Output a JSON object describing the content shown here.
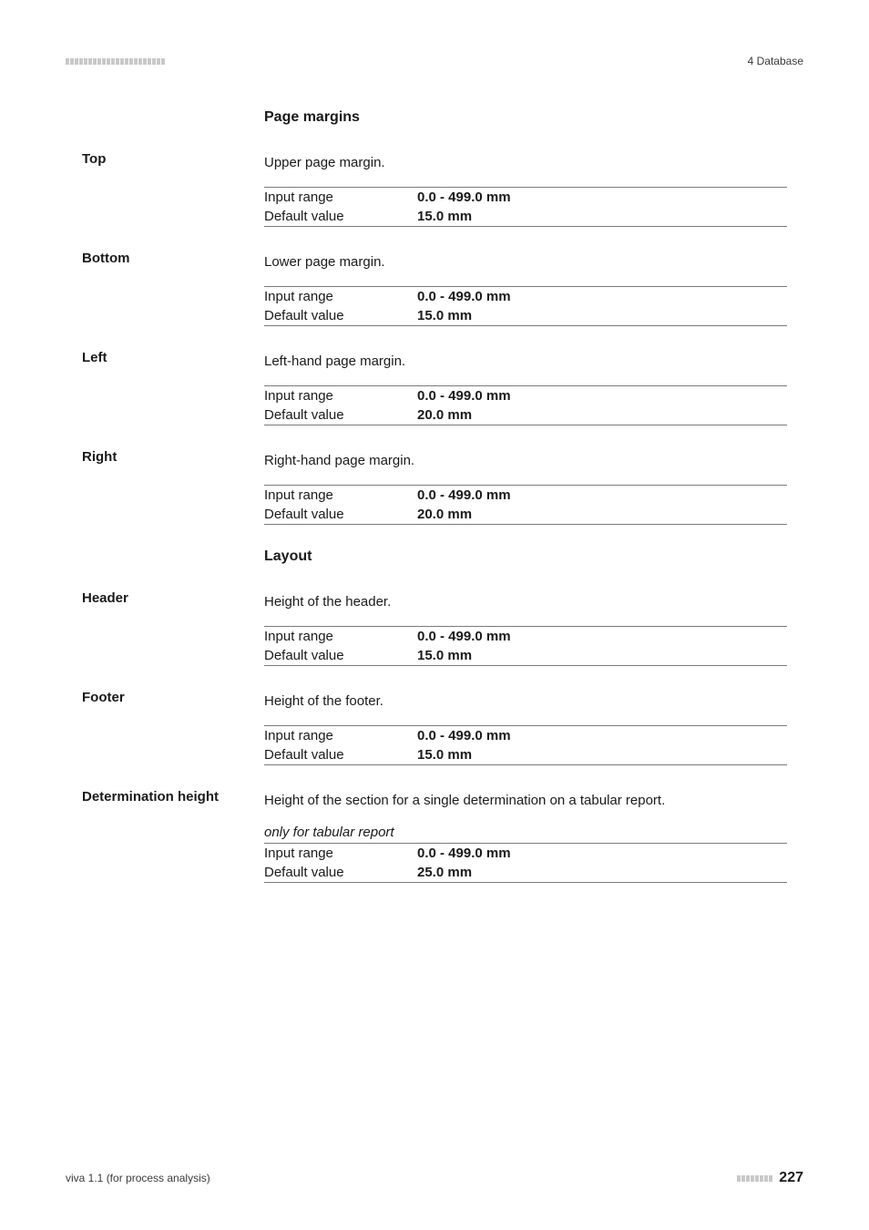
{
  "header": {
    "right_text": "4 Database"
  },
  "sections": [
    {
      "heading": "Page margins",
      "fields": [
        {
          "label": "Top",
          "desc": "Upper page margin.",
          "note": null,
          "range": "0.0 - 499.0 mm",
          "default": "15.0 mm"
        },
        {
          "label": "Bottom",
          "desc": "Lower page margin.",
          "note": null,
          "range": "0.0 - 499.0 mm",
          "default": "15.0 mm"
        },
        {
          "label": "Left",
          "desc": "Left-hand page margin.",
          "note": null,
          "range": "0.0 - 499.0 mm",
          "default": "20.0 mm"
        },
        {
          "label": "Right",
          "desc": "Right-hand page margin.",
          "note": null,
          "range": "0.0 - 499.0 mm",
          "default": "20.0 mm"
        }
      ]
    },
    {
      "heading": "Layout",
      "fields": [
        {
          "label": "Header",
          "desc": "Height of the header.",
          "note": null,
          "range": "0.0 - 499.0 mm",
          "default": "15.0 mm"
        },
        {
          "label": "Footer",
          "desc": "Height of the footer.",
          "note": null,
          "range": "0.0 - 499.0 mm",
          "default": "15.0 mm"
        },
        {
          "label": "Determination height",
          "desc": "Height of the section for a single determination on a tabular report.",
          "note": "only for tabular report",
          "range": "0.0 - 499.0 mm",
          "default": "25.0 mm"
        }
      ]
    }
  ],
  "labels": {
    "input_range": "Input range",
    "default_value": "Default value"
  },
  "footer": {
    "left": "viva 1.1 (for process analysis)",
    "page": "227"
  },
  "style": {
    "dash_count_header": 22,
    "dash_count_footer": 8
  }
}
